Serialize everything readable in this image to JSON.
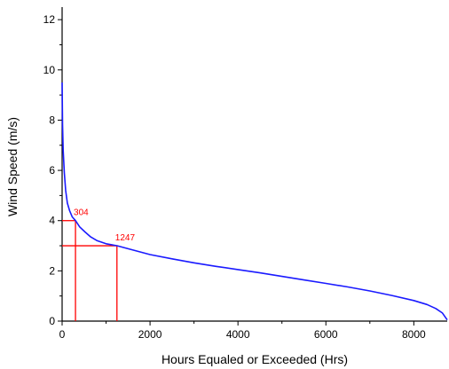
{
  "chart_data": {
    "type": "line",
    "xlabel": "Hours Equaled or Exceeded (Hrs)",
    "ylabel": "Wind Speed (m/s)",
    "xlim": [
      0,
      8760
    ],
    "ylim": [
      0,
      12.5
    ],
    "xticks": [
      0,
      2000,
      4000,
      6000,
      8000
    ],
    "yticks": [
      0,
      2,
      4,
      6,
      8,
      10,
      12
    ],
    "series": [
      {
        "color": "#1a1aff",
        "x": [
          0,
          10,
          25,
          50,
          80,
          120,
          170,
          230,
          304,
          400,
          520,
          650,
          800,
          1000,
          1247,
          1500,
          2000,
          2500,
          3000,
          3500,
          4000,
          4500,
          5000,
          5500,
          6000,
          6500,
          7000,
          7500,
          8000,
          8300,
          8500,
          8650,
          8720,
          8760
        ],
        "y": [
          9.5,
          7.8,
          6.8,
          5.9,
          5.2,
          4.7,
          4.4,
          4.15,
          4.0,
          3.75,
          3.55,
          3.35,
          3.2,
          3.08,
          3.0,
          2.88,
          2.65,
          2.48,
          2.32,
          2.18,
          2.05,
          1.92,
          1.78,
          1.64,
          1.5,
          1.36,
          1.2,
          1.02,
          0.82,
          0.66,
          0.5,
          0.32,
          0.15,
          0.05
        ]
      }
    ],
    "annotations": [
      {
        "label": "304",
        "x": 304,
        "y": 4.0,
        "color": "#ff0000"
      },
      {
        "label": "1247",
        "x": 1247,
        "y": 3.0,
        "color": "#ff0000"
      }
    ]
  }
}
